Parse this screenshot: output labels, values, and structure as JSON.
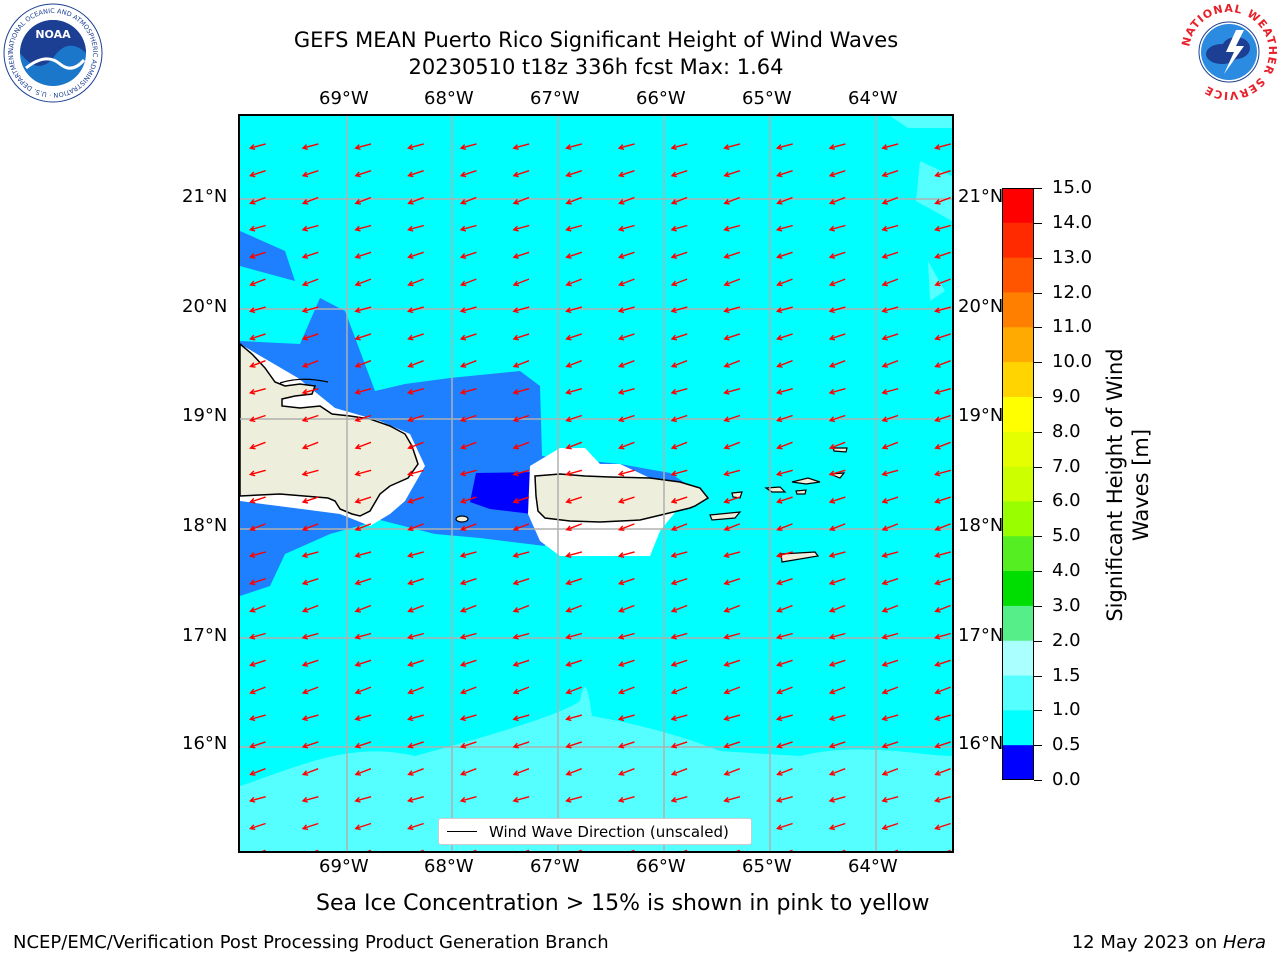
{
  "title": {
    "line1": "GEFS MEAN Puerto Rico Significant Height of Wind Waves",
    "line2": "20230510 t18z 336h fcst   Max: 1.64"
  },
  "map": {
    "longitude_labels": [
      "69°W",
      "68°W",
      "67°W",
      "66°W",
      "65°W",
      "64°W"
    ],
    "latitude_labels": [
      "21°N",
      "20°N",
      "19°N",
      "18°N",
      "17°N",
      "16°N"
    ],
    "legend_label": "Wind Wave Direction (unscaled)",
    "arrow_color": "#ff0000",
    "land_color": "#eeeedc"
  },
  "colorbar": {
    "title_line1": "Significant Height of Wind",
    "title_line2": "Waves [m]",
    "ticks": [
      "15.0",
      "14.0",
      "13.0",
      "12.0",
      "11.0",
      "10.0",
      "9.0",
      "8.0",
      "7.0",
      "6.0",
      "5.0",
      "4.0",
      "3.0",
      "2.0",
      "1.5",
      "1.0",
      "0.5",
      "0.0"
    ],
    "colors_top_to_bottom": [
      "#ff0000",
      "#ff2a00",
      "#ff5500",
      "#ff8000",
      "#ffaa00",
      "#ffd400",
      "#ffff00",
      "#e6ff00",
      "#ccff00",
      "#99ff00",
      "#55ee22",
      "#00dd00",
      "#55ee88",
      "#aaffff",
      "#55ffff",
      "#00ffff",
      "#1e7fff",
      "#0000ff"
    ]
  },
  "subtitle": "Sea Ice Concentration > 15% is shown in pink to yellow",
  "footer": {
    "left": "NCEP/EMC/Verification Post Processing Product Generation Branch",
    "right_date": "12 May 2023 on ",
    "right_host": "Hera"
  },
  "logos": {
    "noaa_text": "NOAA",
    "noaa_ring_text": "NATIONAL OCEANIC AND ATMOSPHERIC ADMINISTRATION · U.S. DEPARTMENT OF COMMERCE",
    "nws_ring_text": "NATIONAL WEATHER SERVICE"
  }
}
